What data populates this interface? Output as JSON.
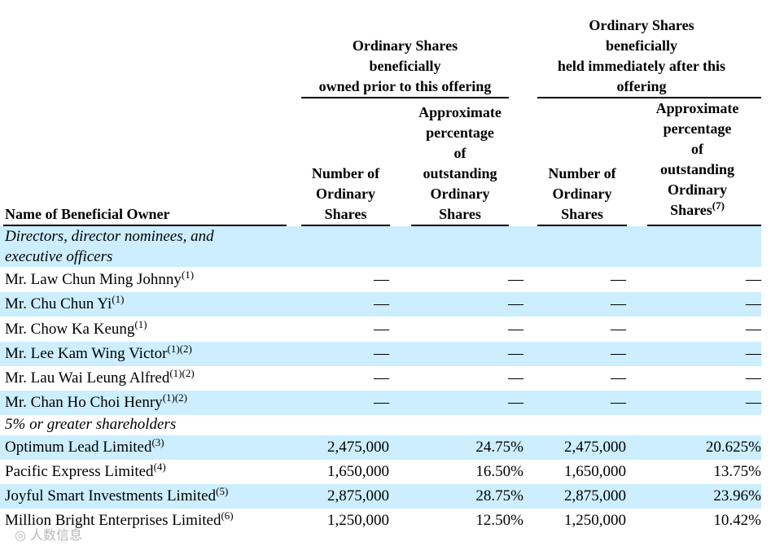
{
  "headers": {
    "group_prior": "Ordinary Shares\nbeneficially\nowned prior to this offering",
    "group_after": "Ordinary Shares\nbeneficially\nheld immediately after this\noffering",
    "col_name": "Name of Beneficial Owner",
    "col_num_prior": "Number of\nOrdinary\nShares",
    "col_pct_prior": "Approximate\npercentage\nof\noutstanding\nOrdinary\nShares",
    "col_num_after": "Number of\nOrdinary\nShares",
    "col_pct_after_text": "Approximate\npercentage\nof\noutstanding\nOrdinary\nShares",
    "col_pct_after_note": "(7)"
  },
  "sections": {
    "directors": "Directors, director nominees, and\nexecutive officers",
    "holders": "5% or greater shareholders"
  },
  "rows": [
    {
      "name": "Mr. Law Chun Ming Johnny",
      "note": "(1)",
      "num_prior": "—",
      "pct_prior": "—",
      "num_after": "—",
      "pct_after": "—"
    },
    {
      "name": "Mr. Chu Chun Yi",
      "note": "(1)",
      "num_prior": "—",
      "pct_prior": "—",
      "num_after": "—",
      "pct_after": "—"
    },
    {
      "name": "Mr. Chow Ka Keung",
      "note": "(1)",
      "num_prior": "—",
      "pct_prior": "—",
      "num_after": "—",
      "pct_after": "—"
    },
    {
      "name": "Mr. Lee Kam Wing Victor",
      "note": "(1)(2)",
      "num_prior": "—",
      "pct_prior": "—",
      "num_after": "—",
      "pct_after": "—"
    },
    {
      "name": "Mr. Lau Wai Leung Alfred",
      "note": "(1)(2)",
      "num_prior": "—",
      "pct_prior": "—",
      "num_after": "—",
      "pct_after": "—"
    },
    {
      "name": "Mr. Chan Ho Choi Henry",
      "note": "(1)(2)",
      "num_prior": "—",
      "pct_prior": "—",
      "num_after": "—",
      "pct_after": "—"
    },
    {
      "name": "Optimum Lead Limited",
      "note": "(3)",
      "num_prior": "2,475,000",
      "pct_prior": "24.75%",
      "num_after": "2,475,000",
      "pct_after": "20.625%"
    },
    {
      "name": "Pacific Express Limited",
      "note": "(4)",
      "num_prior": "1,650,000",
      "pct_prior": "16.50%",
      "num_after": "1,650,000",
      "pct_after": "13.75%"
    },
    {
      "name": "Joyful Smart Investments Limited",
      "note": "(5)",
      "num_prior": "2,875,000",
      "pct_prior": "28.75%",
      "num_after": "2,875,000",
      "pct_after": "23.96%"
    },
    {
      "name": "Million Bright Enterprises Limited",
      "note": "(6)",
      "num_prior": "1,250,000",
      "pct_prior": "12.50%",
      "num_after": "1,250,000",
      "pct_after": "10.42%"
    }
  ],
  "watermark": "◎ 人数信息"
}
